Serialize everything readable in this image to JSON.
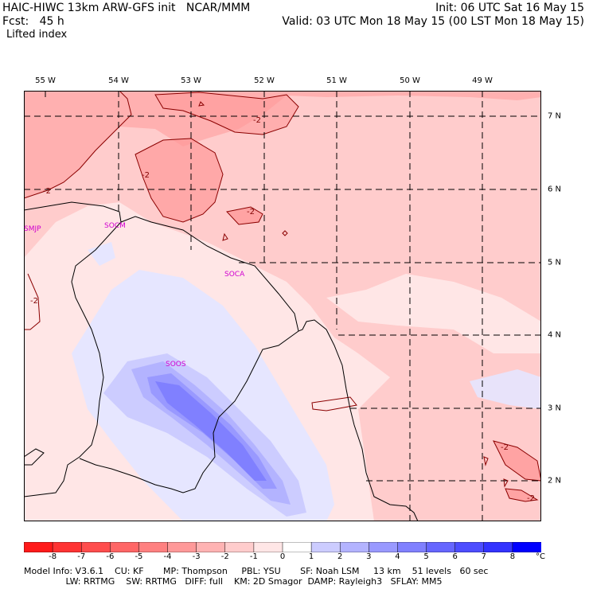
{
  "header": {
    "left_line1": "HAIC-HIWC 13km ARW-GFS init   NCAR/MMM",
    "left_line2": "Fcst:   45 h",
    "field_name": "Lifted index",
    "right_line1": "Init: 06 UTC Sat 16 May 15",
    "right_line2": "Valid: 03 UTC Mon 18 May 15 (00 LST Mon 18 May 15)"
  },
  "map": {
    "lon_labels": [
      "55 W",
      "54 W",
      "53 W",
      "52 W",
      "51 W",
      "50 W",
      "49 W"
    ],
    "lat_labels": [
      "7 N",
      "6 N",
      "5 N",
      "4 N",
      "3 N",
      "2 N"
    ],
    "stations": [
      "SMJP",
      "SOCM",
      "SOCA",
      "SOOS"
    ],
    "contour_labels": [
      "-2",
      "-2",
      "-2",
      "-2",
      "-2",
      "-2",
      "-2"
    ],
    "colors": {
      "coast": "#000000",
      "grid": "#000000",
      "contour": "#8b0000"
    }
  },
  "legend": {
    "ticks": [
      "-8",
      "-7",
      "-6",
      "-5",
      "-4",
      "-3",
      "-2",
      "-1",
      "0",
      "1",
      "2",
      "3",
      "4",
      "5",
      "6",
      "7",
      "8"
    ],
    "unit": "°C",
    "colors": [
      "#ff1a1a",
      "#ff3333",
      "#ff4d4d",
      "#ff6666",
      "#ff8080",
      "#ff9999",
      "#ffb3b3",
      "#ffcccc",
      "#ffe6e6",
      "#ffffff",
      "#ccccff",
      "#b3b3ff",
      "#9999ff",
      "#8080ff",
      "#6666ff",
      "#4d4dff",
      "#3333ff",
      "#0000ff"
    ]
  },
  "model_info": {
    "line1": "Model Info: V3.6.1    CU: KF       MP: Thompson     PBL: YSU       SF: Noah LSM     13 km    51 levels   60 sec",
    "line2": "               LW: RRTMG    SW: RRTMG   DIFF: full    KM: 2D Smagor  DAMP: Rayleigh3   SFLAY: MM5"
  }
}
